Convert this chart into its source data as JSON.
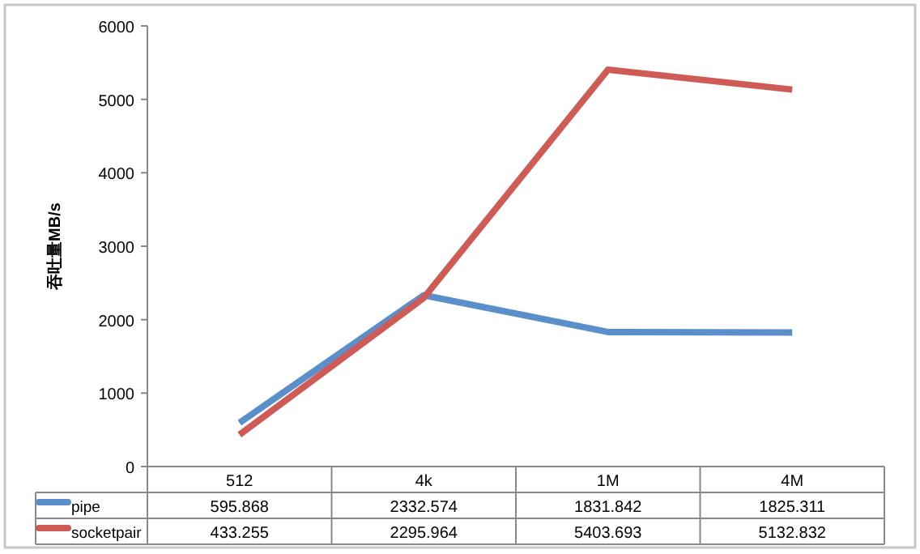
{
  "chart_data": {
    "type": "line",
    "ylabel": "吞吐量MB/s",
    "categories": [
      "512",
      "4k",
      "1M",
      "4M"
    ],
    "ylim": [
      0,
      6000
    ],
    "yticks": [
      0,
      1000,
      2000,
      3000,
      4000,
      5000,
      6000
    ],
    "data_labels": true,
    "legend": "bottom",
    "marker": "none",
    "line_style": "solid",
    "series": [
      {
        "name": "pipe",
        "color": "#5b8fc9",
        "values": [
          595.868,
          2332.574,
          1831.842,
          1825.311
        ]
      },
      {
        "name": "socketpair",
        "color": "#cf5b57",
        "values": [
          433.255,
          2295.964,
          5403.693,
          5132.832
        ]
      }
    ]
  }
}
